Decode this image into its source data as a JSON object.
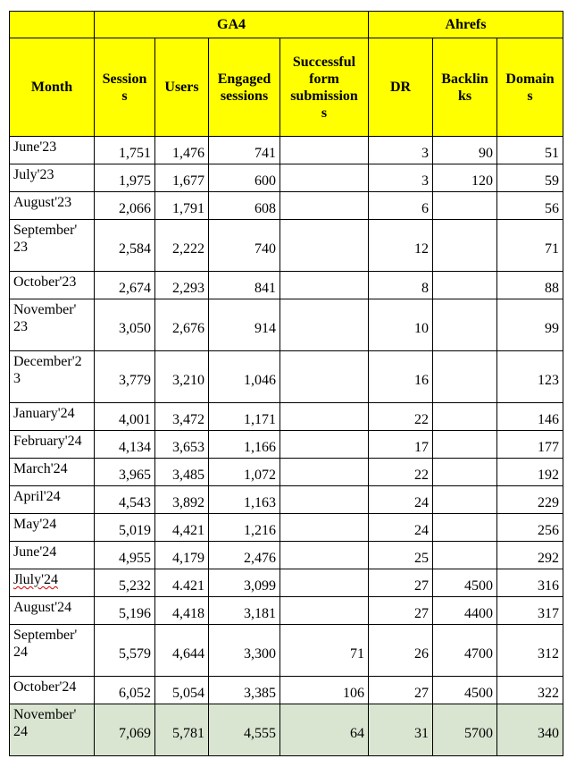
{
  "colors": {
    "header_bg": "#ffff00",
    "highlight_row_bg": "#d9e5d1",
    "border": "#000000",
    "spellcheck_underline": "#cc0000",
    "text": "#000000",
    "page_bg": "#ffffff"
  },
  "table": {
    "group_header": {
      "corner": "",
      "ga4": "GA4",
      "ahrefs": "Ahrefs"
    },
    "column_headers": [
      "Month",
      "Session\ns",
      "Users",
      "Engaged\nsessions",
      "Successful\nform\nsubmission\ns",
      "DR",
      "Backlin\nks",
      "Domain\ns"
    ],
    "rows": [
      {
        "cells": [
          "June'23",
          "1,751",
          "1,476",
          "741",
          "",
          "3",
          "90",
          "51"
        ]
      },
      {
        "cells": [
          "July'23",
          "1,975",
          "1,677",
          "600",
          "",
          "3",
          "120",
          "59"
        ]
      },
      {
        "cells": [
          "August'23",
          "2,066",
          "1,791",
          "608",
          "",
          "6",
          "",
          "56"
        ]
      },
      {
        "cells": [
          "September'\n23",
          "2,584",
          "2,222",
          "740",
          "",
          "12",
          "",
          "71"
        ],
        "tall": true
      },
      {
        "cells": [
          "October'23",
          "2,674",
          "2,293",
          "841",
          "",
          "8",
          "",
          "88"
        ]
      },
      {
        "cells": [
          "November'\n23",
          "3,050",
          "2,676",
          "914",
          "",
          "10",
          "",
          "99"
        ],
        "tall": true
      },
      {
        "cells": [
          "December'2\n3",
          "3,779",
          "3,210",
          "1,046",
          "",
          "16",
          "",
          "123"
        ],
        "tall": true
      },
      {
        "cells": [
          "January'24",
          "4,001",
          "3,472",
          "1,171",
          "",
          "22",
          "",
          "146"
        ]
      },
      {
        "cells": [
          "February'24",
          "4,134",
          "3,653",
          "1,166",
          "",
          "17",
          "",
          "177"
        ]
      },
      {
        "cells": [
          "March'24",
          "3,965",
          "3,485",
          "1,072",
          "",
          "22",
          "",
          "192"
        ]
      },
      {
        "cells": [
          "April'24",
          "4,543",
          "3,892",
          "1,163",
          "",
          "24",
          "",
          "229"
        ]
      },
      {
        "cells": [
          "May'24",
          "5,019",
          "4,421",
          "1,216",
          "",
          "24",
          "",
          "256"
        ]
      },
      {
        "cells": [
          "June'24",
          "4,955",
          "4,179",
          "2,476",
          "",
          "25",
          "",
          "292"
        ]
      },
      {
        "cells": [
          "Jluly'24",
          "5,232",
          "4.421",
          "3,099",
          "",
          "27",
          "4500",
          "316"
        ],
        "misspelled_month": true
      },
      {
        "cells": [
          "August'24",
          "5,196",
          "4,418",
          "3,181",
          "",
          "27",
          "4400",
          "317"
        ]
      },
      {
        "cells": [
          "September'\n24",
          "5,579",
          "4,644",
          "3,300",
          "71",
          "26",
          "4700",
          "312"
        ],
        "tall": true
      },
      {
        "cells": [
          "October'24",
          "6,052",
          "5,054",
          "3,385",
          "106",
          "27",
          "4500",
          "322"
        ]
      },
      {
        "cells": [
          "November'\n24",
          "7,069",
          "5,781",
          "4,555",
          "64",
          "31",
          "5700",
          "340"
        ],
        "tall": true,
        "highlight": true
      }
    ]
  }
}
